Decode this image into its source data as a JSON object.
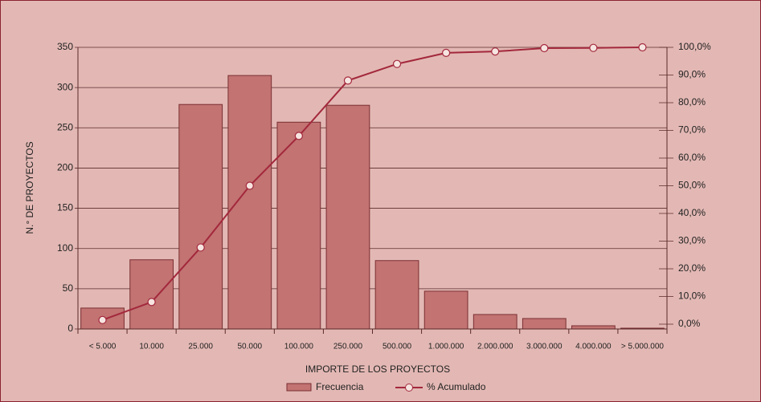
{
  "chart_data": {
    "type": "bar_line",
    "categories": [
      "< 5.000",
      "10.000",
      "25.000",
      "50.000",
      "100.000",
      "250.000",
      "500.000",
      "1.000.000",
      "2.000.000",
      "3.000.000",
      "4.000.000",
      "> 5.000.000"
    ],
    "series": [
      {
        "name": "Frecuencia",
        "color": "#c27372",
        "values": [
          26,
          86,
          279,
          315,
          257,
          278,
          85,
          47,
          18,
          13,
          4,
          1
        ]
      },
      {
        "name": "% Acumulado",
        "color": "#a3283c",
        "axis": "y2",
        "values": [
          1.5,
          8,
          27.7,
          50,
          68,
          88,
          94,
          98,
          98.5,
          99.7,
          99.8,
          100
        ]
      }
    ],
    "x_label": "IMPORTE DE LOS PROYECTOS",
    "y_label": "N.° DE PROYECTOS",
    "ylim": [
      0,
      350
    ],
    "yticks": [
      0,
      50,
      100,
      150,
      200,
      250,
      300,
      350
    ],
    "y2lim": [
      0,
      100
    ],
    "y2ticks": [
      {
        "value": 0,
        "label": "0,0%"
      },
      {
        "value": 10,
        "label": "10,0%"
      },
      {
        "value": 20,
        "label": "20,0%"
      },
      {
        "value": 30,
        "label": "30,0%"
      },
      {
        "value": 40,
        "label": "40,0%"
      },
      {
        "value": 50,
        "label": "50,0%"
      },
      {
        "value": 60,
        "label": "60,0%"
      },
      {
        "value": 70,
        "label": "70,0%"
      },
      {
        "value": 80,
        "label": "80,0%"
      },
      {
        "value": 90,
        "label": "90,0%"
      },
      {
        "value": 100,
        "label": "100,0%"
      }
    ],
    "grid": true,
    "legend": "bottom"
  }
}
